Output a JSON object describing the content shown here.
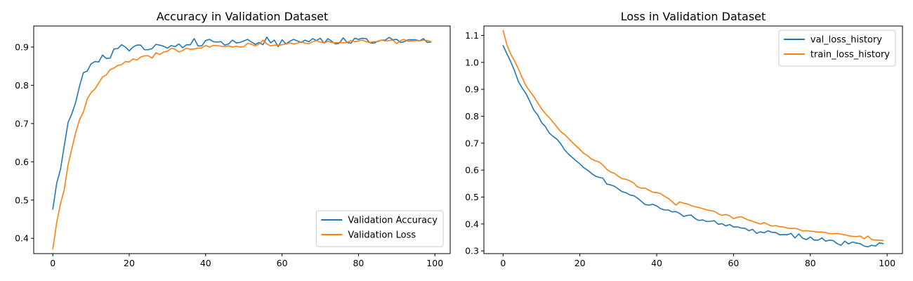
{
  "chart_data": [
    {
      "type": "line",
      "title": "Accuracy in Validation Dataset",
      "xlabel": "",
      "ylabel": "",
      "xlim": [
        -5,
        104
      ],
      "ylim": [
        0.36,
        0.955
      ],
      "xticks": [
        0,
        20,
        40,
        60,
        80,
        100
      ],
      "xtick_labels": [
        "0",
        "20",
        "40",
        "60",
        "80",
        "100"
      ],
      "yticks": [
        0.4,
        0.5,
        0.6,
        0.7,
        0.8,
        0.9
      ],
      "ytick_labels": [
        "0.4",
        "0.5",
        "0.6",
        "0.7",
        "0.8",
        "0.9"
      ],
      "grid": false,
      "legend_position": "lower-right",
      "series": [
        {
          "name": "Validation Accuracy",
          "color": "#1f77b4",
          "values": [
            0.476,
            0.543,
            0.58,
            0.642,
            0.703,
            0.726,
            0.756,
            0.798,
            0.833,
            0.837,
            0.856,
            0.862,
            0.861,
            0.879,
            0.87,
            0.871,
            0.895,
            0.896,
            0.906,
            0.9,
            0.89,
            0.9,
            0.905,
            0.905,
            0.893,
            0.893,
            0.896,
            0.907,
            0.905,
            0.902,
            0.897,
            0.904,
            0.901,
            0.908,
            0.898,
            0.906,
            0.906,
            0.922,
            0.903,
            0.903,
            0.917,
            0.92,
            0.914,
            0.913,
            0.914,
            0.905,
            0.908,
            0.918,
            0.911,
            0.912,
            0.916,
            0.92,
            0.913,
            0.907,
            0.912,
            0.906,
            0.926,
            0.911,
            0.918,
            0.901,
            0.919,
            0.908,
            0.915,
            0.92,
            0.916,
            0.912,
            0.918,
            0.914,
            0.922,
            0.917,
            0.923,
            0.91,
            0.922,
            0.915,
            0.908,
            0.91,
            0.924,
            0.912,
            0.91,
            0.923,
            0.92,
            0.923,
            0.922,
            0.911,
            0.91,
            0.915,
            0.918,
            0.918,
            0.925,
            0.919,
            0.92,
            0.912,
            0.914,
            0.919,
            0.919,
            0.919,
            0.916,
            0.922,
            0.912,
            0.913
          ]
        },
        {
          "name": "Validation Loss",
          "color": "#ff7f0e",
          "values": [
            0.372,
            0.44,
            0.49,
            0.528,
            0.592,
            0.635,
            0.677,
            0.71,
            0.73,
            0.764,
            0.781,
            0.79,
            0.806,
            0.822,
            0.827,
            0.841,
            0.845,
            0.852,
            0.854,
            0.862,
            0.861,
            0.869,
            0.866,
            0.874,
            0.877,
            0.877,
            0.871,
            0.885,
            0.88,
            0.887,
            0.889,
            0.897,
            0.894,
            0.887,
            0.891,
            0.897,
            0.894,
            0.895,
            0.897,
            0.898,
            0.904,
            0.9,
            0.904,
            0.904,
            0.902,
            0.901,
            0.903,
            0.9,
            0.902,
            0.9,
            0.901,
            0.91,
            0.907,
            0.903,
            0.908,
            0.918,
            0.908,
            0.903,
            0.905,
            0.905,
            0.906,
            0.908,
            0.911,
            0.908,
            0.91,
            0.914,
            0.91,
            0.909,
            0.914,
            0.917,
            0.913,
            0.911,
            0.915,
            0.912,
            0.911,
            0.912,
            0.911,
            0.912,
            0.917,
            0.914,
            0.916,
            0.918,
            0.914,
            0.912,
            0.914,
            0.914,
            0.918,
            0.916,
            0.917,
            0.918,
            0.909,
            0.917,
            0.92,
            0.915,
            0.916,
            0.917,
            0.916,
            0.918,
            0.917,
            0.914
          ]
        }
      ]
    },
    {
      "type": "line",
      "title": "Loss in Validation Dataset",
      "xlabel": "",
      "ylabel": "",
      "xlim": [
        -5,
        104
      ],
      "ylim": [
        0.29,
        1.135
      ],
      "xticks": [
        0,
        20,
        40,
        60,
        80,
        100
      ],
      "xtick_labels": [
        "0",
        "20",
        "40",
        "60",
        "80",
        "100"
      ],
      "yticks": [
        0.3,
        0.4,
        0.5,
        0.6,
        0.7,
        0.8,
        0.9,
        1.0,
        1.1
      ],
      "ytick_labels": [
        "0.3",
        "0.4",
        "0.5",
        "0.6",
        "0.7",
        "0.8",
        "0.9",
        "1.0",
        "1.1"
      ],
      "grid": false,
      "legend_position": "upper-right",
      "series": [
        {
          "name": "val_loss_history",
          "color": "#1f77b4",
          "values": [
            1.062,
            1.032,
            1.002,
            0.968,
            0.928,
            0.904,
            0.883,
            0.854,
            0.823,
            0.805,
            0.777,
            0.762,
            0.738,
            0.725,
            0.715,
            0.698,
            0.675,
            0.66,
            0.647,
            0.635,
            0.623,
            0.609,
            0.6,
            0.588,
            0.578,
            0.573,
            0.57,
            0.548,
            0.545,
            0.54,
            0.53,
            0.52,
            0.516,
            0.508,
            0.505,
            0.496,
            0.484,
            0.472,
            0.47,
            0.473,
            0.467,
            0.457,
            0.452,
            0.452,
            0.445,
            0.446,
            0.439,
            0.428,
            0.432,
            0.433,
            0.42,
            0.413,
            0.415,
            0.409,
            0.41,
            0.412,
            0.399,
            0.401,
            0.393,
            0.398,
            0.389,
            0.389,
            0.385,
            0.384,
            0.375,
            0.38,
            0.365,
            0.371,
            0.367,
            0.375,
            0.369,
            0.368,
            0.36,
            0.361,
            0.36,
            0.365,
            0.348,
            0.363,
            0.347,
            0.342,
            0.352,
            0.34,
            0.34,
            0.348,
            0.336,
            0.34,
            0.338,
            0.327,
            0.321,
            0.336,
            0.326,
            0.333,
            0.329,
            0.327,
            0.318,
            0.315,
            0.321,
            0.318,
            0.33,
            0.327
          ]
        },
        {
          "name": "train_loss_history",
          "color": "#ff7f0e",
          "values": [
            1.118,
            1.065,
            1.03,
            1.005,
            0.975,
            0.942,
            0.912,
            0.892,
            0.873,
            0.85,
            0.828,
            0.81,
            0.795,
            0.778,
            0.76,
            0.743,
            0.732,
            0.718,
            0.703,
            0.69,
            0.676,
            0.662,
            0.654,
            0.641,
            0.635,
            0.63,
            0.619,
            0.603,
            0.593,
            0.588,
            0.577,
            0.568,
            0.566,
            0.56,
            0.552,
            0.538,
            0.533,
            0.533,
            0.525,
            0.518,
            0.516,
            0.513,
            0.503,
            0.495,
            0.483,
            0.47,
            0.482,
            0.477,
            0.474,
            0.468,
            0.464,
            0.461,
            0.457,
            0.452,
            0.45,
            0.447,
            0.438,
            0.432,
            0.435,
            0.43,
            0.42,
            0.425,
            0.427,
            0.42,
            0.414,
            0.41,
            0.404,
            0.4,
            0.405,
            0.398,
            0.392,
            0.394,
            0.39,
            0.389,
            0.385,
            0.383,
            0.384,
            0.38,
            0.374,
            0.375,
            0.373,
            0.372,
            0.37,
            0.37,
            0.368,
            0.364,
            0.364,
            0.365,
            0.362,
            0.36,
            0.356,
            0.354,
            0.353,
            0.355,
            0.345,
            0.355,
            0.342,
            0.34,
            0.34,
            0.338
          ]
        }
      ]
    }
  ]
}
